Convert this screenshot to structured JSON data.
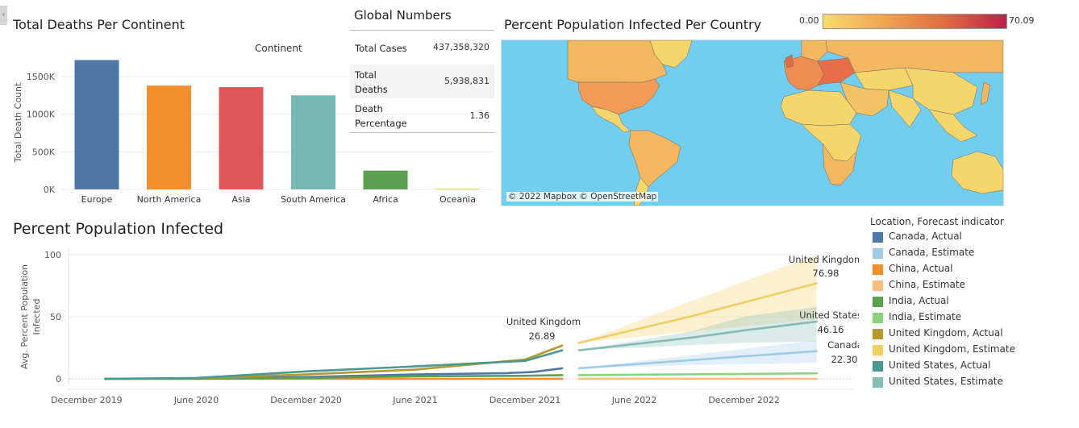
{
  "deaths_chart": {
    "title": "Total Deaths Per Continent",
    "legend_title": "Continent",
    "ylabel": "Total Death Count",
    "y_ticks": [
      "0K",
      "500K",
      "1000K",
      "1500K"
    ],
    "colors": [
      "#4e79a7",
      "#f28e2b",
      "#e15759",
      "#76b7b2",
      "#59a14f",
      "#edc948"
    ]
  },
  "global_numbers": {
    "title": "Global Numbers",
    "rows": [
      {
        "label_lines": [
          "Total Cases"
        ],
        "value": "437,358,320"
      },
      {
        "label_lines": [
          "Total",
          "Deaths"
        ],
        "value": "5,938,831"
      },
      {
        "label_lines": [
          "Death",
          "Percentage"
        ],
        "value": "1.36"
      }
    ]
  },
  "map": {
    "title": "Percent Population Infected Per Country",
    "scale_min": "0.00",
    "scale_max": "70.09",
    "attribution": "© 2022 Mapbox © OpenStreetMap",
    "ocean_color": "#73cdef",
    "gradient": [
      "#f7dc6a",
      "#f0a44f",
      "#e06a44",
      "#bf1f4a"
    ]
  },
  "infection_chart": {
    "title": "Percent Population Infected",
    "ylabel_lines": [
      "Avg. Percent Population",
      "Infected"
    ],
    "y_ticks": [
      "0",
      "50",
      "100"
    ],
    "x_ticks": [
      "December 2019",
      "June 2020",
      "December 2020",
      "June 2021",
      "December 2021",
      "June 2022",
      "December 2022"
    ],
    "annotations": [
      {
        "name": "United Kingdom",
        "value": "26.89"
      },
      {
        "name": "United Kingdom",
        "value": "76.98"
      },
      {
        "name": "United States",
        "value": "46.16"
      },
      {
        "name": "Canada",
        "value": "22.30"
      }
    ]
  },
  "legend": {
    "title": "Location, Forecast indicator",
    "items": [
      {
        "label": "Canada, Actual",
        "color": "#4e79a7"
      },
      {
        "label": "Canada, Estimate",
        "color": "#a0cbe8"
      },
      {
        "label": "China, Actual",
        "color": "#f28e2b"
      },
      {
        "label": "China, Estimate",
        "color": "#ffbe7d"
      },
      {
        "label": "India, Actual",
        "color": "#59a14f"
      },
      {
        "label": "India, Estimate",
        "color": "#8cd17d"
      },
      {
        "label": "United Kingdom, Actual",
        "color": "#b6992d"
      },
      {
        "label": "United Kingdom, Estimate",
        "color": "#f1ce63"
      },
      {
        "label": "United States, Actual",
        "color": "#499894"
      },
      {
        "label": "United States, Estimate",
        "color": "#86bcb6"
      }
    ]
  },
  "chart_data": [
    {
      "type": "bar",
      "title": "Total Deaths Per Continent",
      "xlabel": "Continent",
      "ylabel": "Total Death Count",
      "categories": [
        "Europe",
        "North America",
        "Asia",
        "South America",
        "Africa",
        "Oceania"
      ],
      "values": [
        1720000,
        1380000,
        1360000,
        1250000,
        250000,
        9000
      ],
      "ylim": [
        0,
        1800000
      ],
      "grid": true
    },
    {
      "type": "line",
      "title": "Percent Population Infected",
      "ylabel": "Avg. Percent Population Infected",
      "ylim": [
        0,
        100
      ],
      "x_range": [
        "2019-11-01",
        "2023-06-01"
      ],
      "grid": true,
      "legend_position": "right",
      "series": [
        {
          "name": "Canada, Actual",
          "x": [
            "2020-01-01",
            "2020-06-01",
            "2020-12-01",
            "2021-06-01",
            "2021-11-01",
            "2021-12-15",
            "2022-02-01"
          ],
          "y": [
            0,
            0.3,
            1.5,
            3.6,
            4.6,
            5.6,
            8.5
          ]
        },
        {
          "name": "China, Actual",
          "x": [
            "2020-01-01",
            "2020-06-01",
            "2020-12-01",
            "2021-06-01",
            "2021-12-01",
            "2022-02-01"
          ],
          "y": [
            0,
            0.01,
            0.01,
            0.01,
            0.01,
            0.02
          ]
        },
        {
          "name": "India, Actual",
          "x": [
            "2020-01-01",
            "2020-06-01",
            "2020-12-01",
            "2021-06-01",
            "2021-12-01",
            "2022-02-01"
          ],
          "y": [
            0,
            0.05,
            0.7,
            2.1,
            2.5,
            3.0
          ]
        },
        {
          "name": "United Kingdom, Actual",
          "x": [
            "2020-01-01",
            "2020-06-01",
            "2020-12-01",
            "2021-06-01",
            "2021-12-01",
            "2022-02-01"
          ],
          "y": [
            0,
            0.5,
            3.6,
            7.4,
            15.5,
            26.89
          ]
        },
        {
          "name": "United States, Actual",
          "x": [
            "2020-01-01",
            "2020-06-01",
            "2020-12-01",
            "2021-06-01",
            "2021-12-01",
            "2022-02-01"
          ],
          "y": [
            0,
            0.7,
            6.0,
            10.0,
            14.5,
            23.0
          ]
        },
        {
          "name": "Canada, Estimate",
          "x": [
            "2022-03-01",
            "2022-09-01",
            "2023-04-01"
          ],
          "y": [
            8.5,
            15.0,
            22.3
          ],
          "band_low": [
            8.5,
            11.0,
            13.0
          ],
          "band_high": [
            8.5,
            19.0,
            31.0
          ]
        },
        {
          "name": "China, Estimate",
          "x": [
            "2022-03-01",
            "2023-04-01"
          ],
          "y": [
            0.02,
            0.04
          ]
        },
        {
          "name": "India, Estimate",
          "x": [
            "2022-03-01",
            "2023-04-01"
          ],
          "y": [
            3.0,
            4.4
          ]
        },
        {
          "name": "United Kingdom, Estimate",
          "x": [
            "2022-03-01",
            "2022-09-01",
            "2023-04-01"
          ],
          "y": [
            29.0,
            50.0,
            76.98
          ],
          "band_low": [
            29.0,
            38.0,
            48.0
          ],
          "band_high": [
            29.0,
            62.0,
            100.0
          ]
        },
        {
          "name": "United States, Estimate",
          "x": [
            "2022-03-01",
            "2022-09-01",
            "2022-12-01",
            "2023-04-01"
          ],
          "y": [
            23.0,
            33.0,
            39.0,
            46.16
          ],
          "band_low": [
            23.0,
            27.0,
            29.0,
            30.0
          ],
          "band_high": [
            23.0,
            38.0,
            50.0,
            58.0
          ]
        }
      ]
    }
  ]
}
